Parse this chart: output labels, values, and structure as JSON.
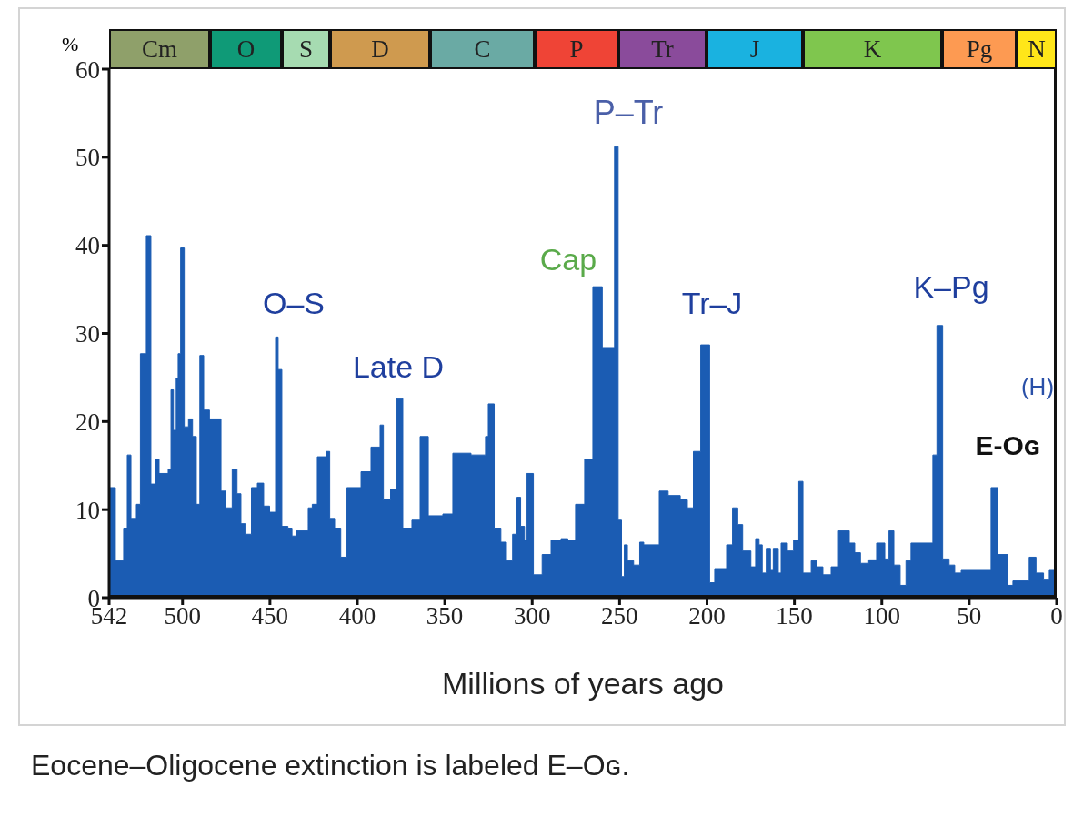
{
  "chart_data": {
    "type": "area",
    "xlabel": "Millions of years ago",
    "ylabel": "%",
    "x": [
      542,
      538.4,
      538.4,
      533.7,
      533.7,
      531.6,
      531.6,
      529.5,
      529.5,
      526.4,
      526.4,
      524.1,
      524.1,
      520.7,
      520.7,
      518.1,
      518.1,
      515.2,
      515.2,
      513.4,
      513.4,
      508.2,
      508.2,
      506.6,
      506.6,
      505.2,
      505.2,
      503.6,
      503.6,
      502.5,
      502.5,
      501.1,
      501.1,
      499,
      499,
      496.6,
      496.6,
      494.3,
      494.3,
      492.1,
      492.1,
      490.1,
      490.1,
      487.9,
      487.9,
      484.6,
      484.6,
      478,
      478,
      475.4,
      475.4,
      471.6,
      471.6,
      468.8,
      468.8,
      466.6,
      466.6,
      464.1,
      464.1,
      460.6,
      460.6,
      457.2,
      457.2,
      453.6,
      453.6,
      450.2,
      450.2,
      446.8,
      446.8,
      445.3,
      445.3,
      443.2,
      443.2,
      439.7,
      439.7,
      437.4,
      437.4,
      435.1,
      435.1,
      428.1,
      428.1,
      425.8,
      425.8,
      422.9,
      422.9,
      417.7,
      417.7,
      415.8,
      415.8,
      413,
      413,
      409.5,
      409.5,
      406,
      406,
      397.9,
      397.9,
      392.2,
      392.2,
      387,
      387,
      385.1,
      385.1,
      381,
      381,
      377.6,
      377.6,
      374,
      374,
      368.8,
      368.8,
      364.1,
      364.1,
      359.4,
      359.4,
      351.1,
      351.1,
      345.4,
      345.4,
      335,
      335,
      326.7,
      326.7,
      325.1,
      325.1,
      321.7,
      321.7,
      317.9,
      317.9,
      314.7,
      314.7,
      311.2,
      311.2,
      308.7,
      308.7,
      306.6,
      306.6,
      304.4,
      304.4,
      303.1,
      303.1,
      299.3,
      299.3,
      294.3,
      294.3,
      289.2,
      289.2,
      283.5,
      283.5,
      279.6,
      279.6,
      275.2,
      275.2,
      270,
      270,
      265.3,
      265.3,
      259.9,
      259.9,
      252.9,
      252.9,
      250.8,
      250.8,
      248.9,
      248.9,
      247.3,
      247.3,
      245.5,
      245.5,
      242,
      242,
      238.5,
      238.5,
      236.2,
      236.2,
      227.3,
      227.3,
      222.2,
      222.2,
      215.3,
      215.3,
      211.2,
      211.2,
      207.8,
      207.8,
      203.6,
      203.6,
      198.5,
      198.5,
      195.6,
      195.6,
      188.8,
      188.8,
      185.4,
      185.4,
      182.4,
      182.4,
      179.6,
      179.6,
      174.9,
      174.9,
      172.2,
      172.2,
      170.2,
      170.2,
      168.4,
      168.4,
      166.1,
      166.1,
      163.7,
      163.7,
      162.1,
      162.1,
      159.2,
      159.2,
      157.6,
      157.6,
      154,
      154,
      150.5,
      150.5,
      147.5,
      147.5,
      145.1,
      145.1,
      140.4,
      140.4,
      137.3,
      137.3,
      133.7,
      133.7,
      129,
      129,
      124.8,
      124.8,
      118.6,
      118.6,
      115.5,
      115.5,
      112.2,
      112.2,
      107.5,
      107.5,
      103,
      103,
      98.3,
      98.3,
      95.9,
      95.9,
      93.1,
      93.1,
      89.5,
      89.5,
      86.2,
      86.2,
      83.3,
      83.3,
      70.8,
      70.8,
      68.5,
      68.5,
      65.2,
      65.2,
      61.5,
      61.5,
      58.3,
      58.3,
      54.6,
      54.6,
      37.5,
      37.5,
      33.6,
      33.6,
      28.1,
      28.1,
      25,
      25,
      15.7,
      15.7,
      11.8,
      11.8,
      7.5,
      7.5,
      4.2,
      4.2,
      0
    ],
    "values": [
      12.5,
      12.5,
      4.2,
      4.2,
      7.9,
      7.9,
      16.2,
      16.2,
      9,
      9,
      10.6,
      10.6,
      27.7,
      27.7,
      41.1,
      41.1,
      12.9,
      12.9,
      15.7,
      15.7,
      14.1,
      14.1,
      14.6,
      14.6,
      23.6,
      23.6,
      19,
      19,
      24.9,
      24.9,
      27.7,
      27.7,
      39.7,
      39.7,
      19.4,
      19.4,
      20.3,
      20.3,
      18.3,
      18.3,
      10.6,
      10.6,
      27.5,
      27.5,
      21.3,
      21.3,
      20.3,
      20.3,
      12.1,
      12.1,
      10.2,
      10.2,
      14.6,
      14.6,
      11.8,
      11.8,
      8.4,
      8.4,
      7.2,
      7.2,
      12.5,
      12.5,
      13,
      13,
      10.4,
      10.4,
      9.7,
      9.7,
      29.6,
      29.6,
      25.9,
      25.9,
      8.1,
      8.1,
      7.9,
      7.9,
      7,
      7,
      7.6,
      7.6,
      10.2,
      10.2,
      10.6,
      10.6,
      16,
      16,
      16.6,
      16.6,
      9,
      9,
      7.9,
      7.9,
      4.6,
      4.6,
      12.5,
      12.5,
      14.3,
      14.3,
      17.1,
      17.1,
      19.6,
      19.6,
      11.1,
      11.1,
      12.3,
      12.3,
      22.6,
      22.6,
      7.9,
      7.9,
      8.8,
      8.8,
      18.3,
      18.3,
      9.3,
      9.3,
      9.5,
      9.5,
      16.4,
      16.4,
      16.2,
      16.2,
      18.3,
      18.3,
      22,
      22,
      7.9,
      7.9,
      6.3,
      6.3,
      4.2,
      4.2,
      7.2,
      7.2,
      11.4,
      11.4,
      8.1,
      8.1,
      6.5,
      6.5,
      14.1,
      14.1,
      2.6,
      2.6,
      4.9,
      4.9,
      6.5,
      6.5,
      6.7,
      6.7,
      6.5,
      6.5,
      10.6,
      10.6,
      15.7,
      15.7,
      35.3,
      35.3,
      28.4,
      28.4,
      51.2,
      51.2,
      8.8,
      8.8,
      2.4,
      2.4,
      6,
      6,
      4.2,
      4.2,
      3.7,
      3.7,
      6.3,
      6.3,
      6,
      6,
      12.1,
      12.1,
      11.6,
      11.6,
      11.1,
      11.1,
      10.2,
      10.2,
      16.6,
      16.6,
      28.7,
      28.7,
      1.7,
      1.7,
      3.3,
      3.3,
      6,
      6,
      10.2,
      10.2,
      8.3,
      8.3,
      5.3,
      5.3,
      3.5,
      3.5,
      6.7,
      6.7,
      6,
      6,
      2.8,
      2.8,
      5.6,
      5.6,
      3.2,
      3.2,
      5.6,
      5.6,
      2.8,
      2.8,
      6.2,
      6.2,
      5.3,
      5.3,
      6.5,
      6.5,
      13.2,
      13.2,
      2.8,
      2.8,
      4.2,
      4.2,
      3.5,
      3.5,
      2.6,
      2.6,
      3.5,
      3.5,
      7.6,
      7.6,
      6.2,
      6.2,
      5.1,
      5.1,
      3.9,
      3.9,
      4.3,
      4.3,
      6.2,
      6.2,
      4.4,
      4.4,
      7.6,
      7.6,
      3.7,
      3.7,
      1.4,
      1.4,
      4.2,
      4.2,
      6.2,
      6.2,
      16.2,
      16.2,
      30.9,
      30.9,
      4.4,
      4.4,
      3.7,
      3.7,
      2.8,
      2.8,
      3.2,
      3.2,
      12.5,
      12.5,
      4.9,
      4.9,
      1.4,
      1.4,
      1.9,
      1.9,
      4.6,
      4.6,
      2.8,
      2.8,
      2.1,
      2.1,
      3.2,
      3.2
    ],
    "color": "#1b5cb3",
    "xlim": [
      542,
      0
    ],
    "xticks": [
      542,
      500,
      450,
      400,
      350,
      300,
      250,
      200,
      150,
      100,
      50,
      0
    ],
    "ylim": [
      0,
      60
    ],
    "yticks": [
      0,
      10,
      20,
      30,
      40,
      50,
      60
    ],
    "annotations": [
      "O–S",
      "Late D",
      "Cap",
      "P–Tr",
      "Tr–J",
      "K–Pg",
      "(H)",
      "E-Oɢ",
      "Cm",
      "O",
      "S",
      "D",
      "C",
      "P",
      "Tr",
      "J",
      "K",
      "Pg",
      "N",
      "Eocene–Oligocene extinction is labeled E–Oɢ."
    ]
  }
}
